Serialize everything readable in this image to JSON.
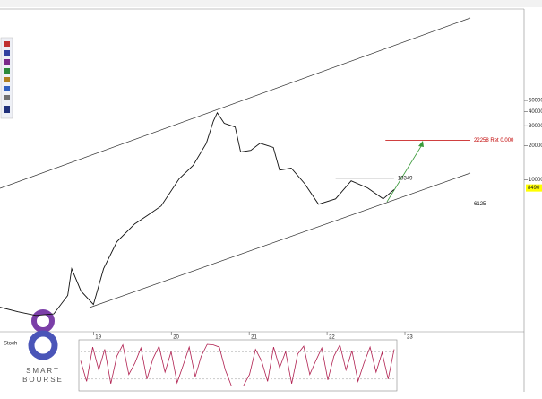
{
  "chart_data": {
    "type": "line",
    "log_scale": true,
    "x": [
      2017.8,
      2018.03,
      2018.26,
      2018.49,
      2018.67,
      2018.72,
      2018.84,
      2019.0,
      2019.13,
      2019.3,
      2019.53,
      2019.7,
      2019.87,
      2020.1,
      2020.28,
      2020.45,
      2020.54,
      2020.59,
      2020.68,
      2020.82,
      2020.89,
      2021.02,
      2021.14,
      2021.31,
      2021.39,
      2021.54,
      2021.71,
      2021.89,
      2022.11,
      2022.31,
      2022.52,
      2022.72,
      2022.86
    ],
    "series": [
      {
        "color": "#111111",
        "values": [
          757,
          690,
          640,
          660,
          960,
          1650,
          1050,
          800,
          1650,
          2850,
          4100,
          4900,
          5900,
          10200,
          13400,
          21000,
          33000,
          39000,
          31500,
          29200,
          17600,
          18200,
          21000,
          19300,
          12200,
          12700,
          9300,
          6100,
          6800,
          9800,
          8500,
          6800,
          8200
        ]
      }
    ],
    "xlim": [
      2017.8,
      2024.53
    ],
    "ylim": [
      460,
      320000
    ],
    "xticks": [
      {
        "value": 2019,
        "label": "19"
      },
      {
        "value": 2020,
        "label": "20"
      },
      {
        "value": 2021,
        "label": "21"
      },
      {
        "value": 2022,
        "label": "22"
      },
      {
        "value": 2023,
        "label": "23"
      }
    ],
    "yticks": [
      50000,
      40000,
      30000,
      20000,
      10000
    ],
    "levels": [
      {
        "value": 22258,
        "label": "22258 Ret 0.000",
        "color": "#c00000",
        "x": [
          2022.75,
          2023.84
        ]
      },
      {
        "value": 10349,
        "label": "10349",
        "color": "#111111",
        "x": [
          2022.11,
          2022.86
        ]
      },
      {
        "value": 6125,
        "label": "6125",
        "color": "#111111",
        "x": [
          2021.89,
          2023.84
        ]
      }
    ],
    "last_price": 8490,
    "indicator": {
      "title": "Stoch",
      "ylim": [
        0,
        100
      ],
      "levels": [
        20,
        80
      ],
      "values": [
        60,
        15,
        90,
        40,
        85,
        10,
        70,
        95,
        30,
        55,
        88,
        20,
        65,
        92,
        35,
        80,
        12,
        50,
        90,
        25,
        70,
        96,
        95,
        90,
        40,
        5,
        5,
        5,
        30,
        85,
        60,
        15,
        90,
        45,
        80,
        10,
        75,
        92,
        30,
        60,
        88,
        18,
        70,
        95,
        40,
        82,
        15,
        55,
        90,
        35,
        78,
        20,
        85
      ]
    }
  },
  "logo": {
    "line1": "SMART",
    "line2": "BOURSE"
  }
}
